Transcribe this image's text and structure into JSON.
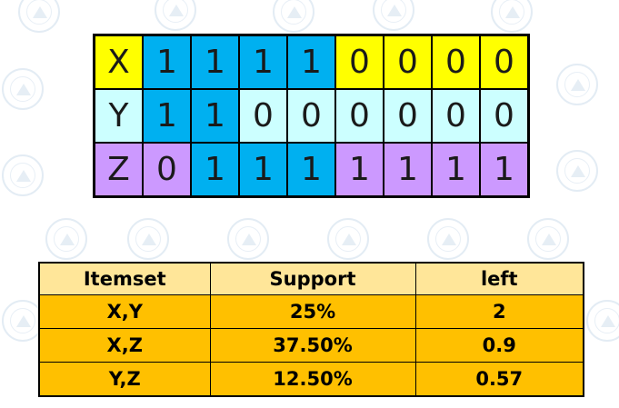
{
  "bit_grid": {
    "rows": [
      {
        "label": "X",
        "bits": [
          "1",
          "1",
          "1",
          "1",
          "0",
          "0",
          "0",
          "0"
        ],
        "colors": [
          "yellow",
          "blue",
          "blue",
          "blue",
          "blue",
          "yellow",
          "yellow",
          "yellow",
          "yellow"
        ]
      },
      {
        "label": "Y",
        "bits": [
          "1",
          "1",
          "0",
          "0",
          "0",
          "0",
          "0",
          "0"
        ],
        "colors": [
          "lightblue",
          "blue",
          "blue",
          "lightblue",
          "lightblue",
          "lightblue",
          "lightblue",
          "lightblue",
          "lightblue"
        ]
      },
      {
        "label": "Z",
        "bits": [
          "0",
          "1",
          "1",
          "1",
          "1",
          "1",
          "1",
          "1"
        ],
        "colors": [
          "purple",
          "purple",
          "blue",
          "blue",
          "blue",
          "purple",
          "purple",
          "purple",
          "purple"
        ]
      }
    ],
    "palette": {
      "yellow": "#ffff00",
      "blue": "#00b0f0",
      "lightblue": "#ccffff",
      "purple": "#cc99ff"
    }
  },
  "itemset_table": {
    "headers": [
      "Itemset",
      "Support",
      "left"
    ],
    "rows": [
      [
        "X,Y",
        "25%",
        "2"
      ],
      [
        "X,Z",
        "37.50%",
        "0.9"
      ],
      [
        "Y,Z",
        "12.50%",
        "0.57"
      ]
    ],
    "colors": {
      "header": "#ffe699",
      "body": "#ffc000"
    }
  }
}
